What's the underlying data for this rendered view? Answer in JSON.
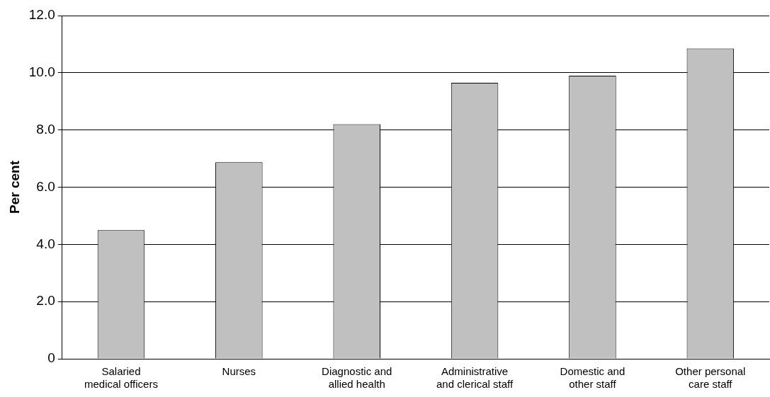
{
  "chart_data": {
    "type": "bar",
    "ylabel": "Per cent",
    "categories": [
      "Salaried\nmedical officers",
      "Nurses",
      "Diagnostic and\nallied health",
      "Administrative\nand clerical staff",
      "Domestic and\nother staff",
      "Other personal\ncare staff"
    ],
    "values": [
      4.5,
      6.87,
      8.2,
      9.65,
      9.9,
      10.85
    ],
    "color": "#c0c0c0",
    "ylim": [
      0,
      12
    ],
    "yticks": [
      0,
      {
        "value": 2,
        "label": "2.0"
      },
      {
        "value": 4,
        "label": "4.0"
      },
      {
        "value": 6,
        "label": "6.0"
      },
      {
        "value": 8,
        "label": "8.0"
      },
      {
        "value": 10,
        "label": "10.0"
      },
      {
        "value": 12,
        "label": "12.0"
      }
    ],
    "grid": "y",
    "legend": false
  }
}
